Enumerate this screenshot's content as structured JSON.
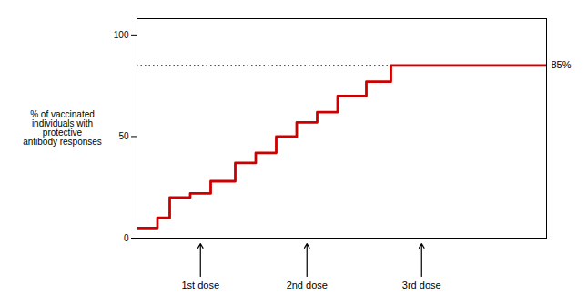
{
  "chart_data": {
    "type": "line",
    "x": [
      0.0,
      0.5,
      0.5,
      0.8,
      0.8,
      1.3,
      1.3,
      1.8,
      1.8,
      2.4,
      2.4,
      2.9,
      2.9,
      3.4,
      3.4,
      3.9,
      3.9,
      4.4,
      4.4,
      4.9,
      4.9,
      5.6,
      5.6,
      6.2,
      6.2,
      6.8,
      6.8,
      7.4,
      7.4,
      10.0
    ],
    "values": [
      5,
      5,
      10,
      10,
      20,
      20,
      22,
      22,
      28,
      28,
      37,
      37,
      42,
      42,
      50,
      50,
      57,
      57,
      62,
      62,
      70,
      70,
      77,
      77,
      85,
      85,
      85,
      85,
      85,
      85
    ],
    "color": "#cc0000",
    "xlim": [
      0,
      10
    ],
    "ylim": [
      0,
      108
    ],
    "yticks": [
      0,
      50,
      100
    ],
    "tick_labels": "y",
    "ylabel": "% of vaccinated\nindividuals with\nprotective\nantibody responses",
    "reference_line": {
      "y": 85,
      "label": "85%",
      "color": "#555555",
      "line_style": "dotted"
    },
    "annotations": [
      {
        "x": 1.55,
        "text": "1st dose"
      },
      {
        "x": 4.15,
        "text": "2nd dose"
      },
      {
        "x": 6.95,
        "text": "3rd dose"
      }
    ]
  }
}
